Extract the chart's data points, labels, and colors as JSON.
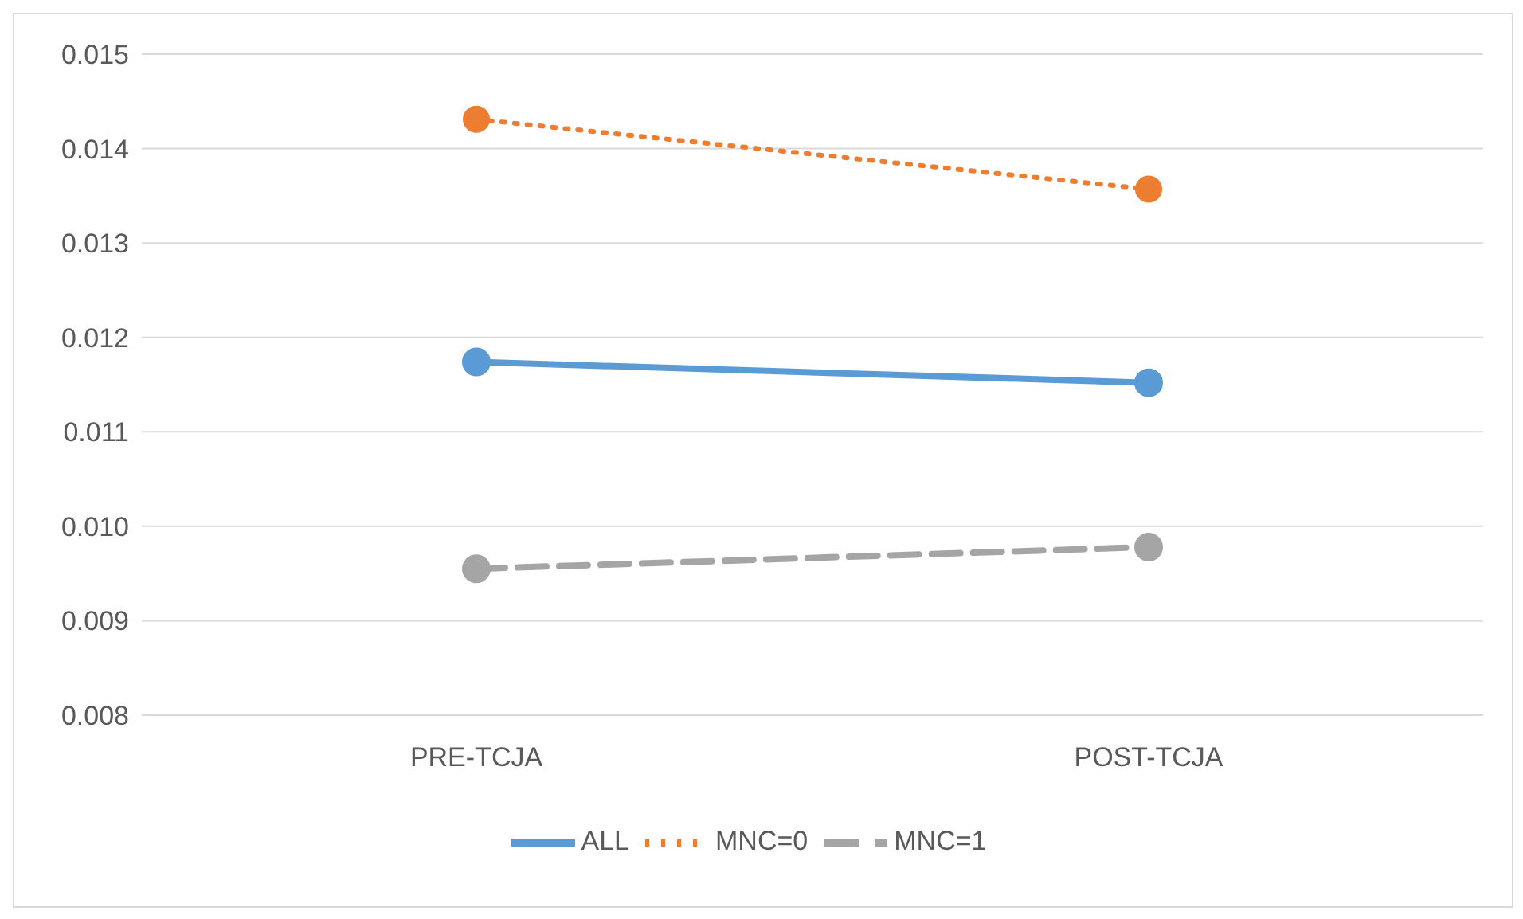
{
  "chart_data": {
    "type": "line",
    "categories": [
      "PRE-TCJA",
      "POST-TCJA"
    ],
    "series": [
      {
        "name": "ALL",
        "color": "#5b9bd5",
        "values": [
          0.01174,
          0.01152
        ],
        "line_style": "solid"
      },
      {
        "name": "MNC=0",
        "color": "#ed7d31",
        "values": [
          0.01431,
          0.01357
        ],
        "line_style": "dotted"
      },
      {
        "name": "MNC=1",
        "color": "#a5a5a5",
        "values": [
          0.00955,
          0.00978
        ],
        "line_style": "dashed"
      }
    ],
    "ylim": [
      0.008,
      0.015
    ],
    "yticks": [
      0.008,
      0.009,
      {
        "value": 0.01,
        "label": "0.010"
      },
      0.011,
      0.012,
      0.013,
      0.014,
      0.015
    ],
    "grid": "y",
    "legend": "bottom",
    "marker": "circle"
  }
}
